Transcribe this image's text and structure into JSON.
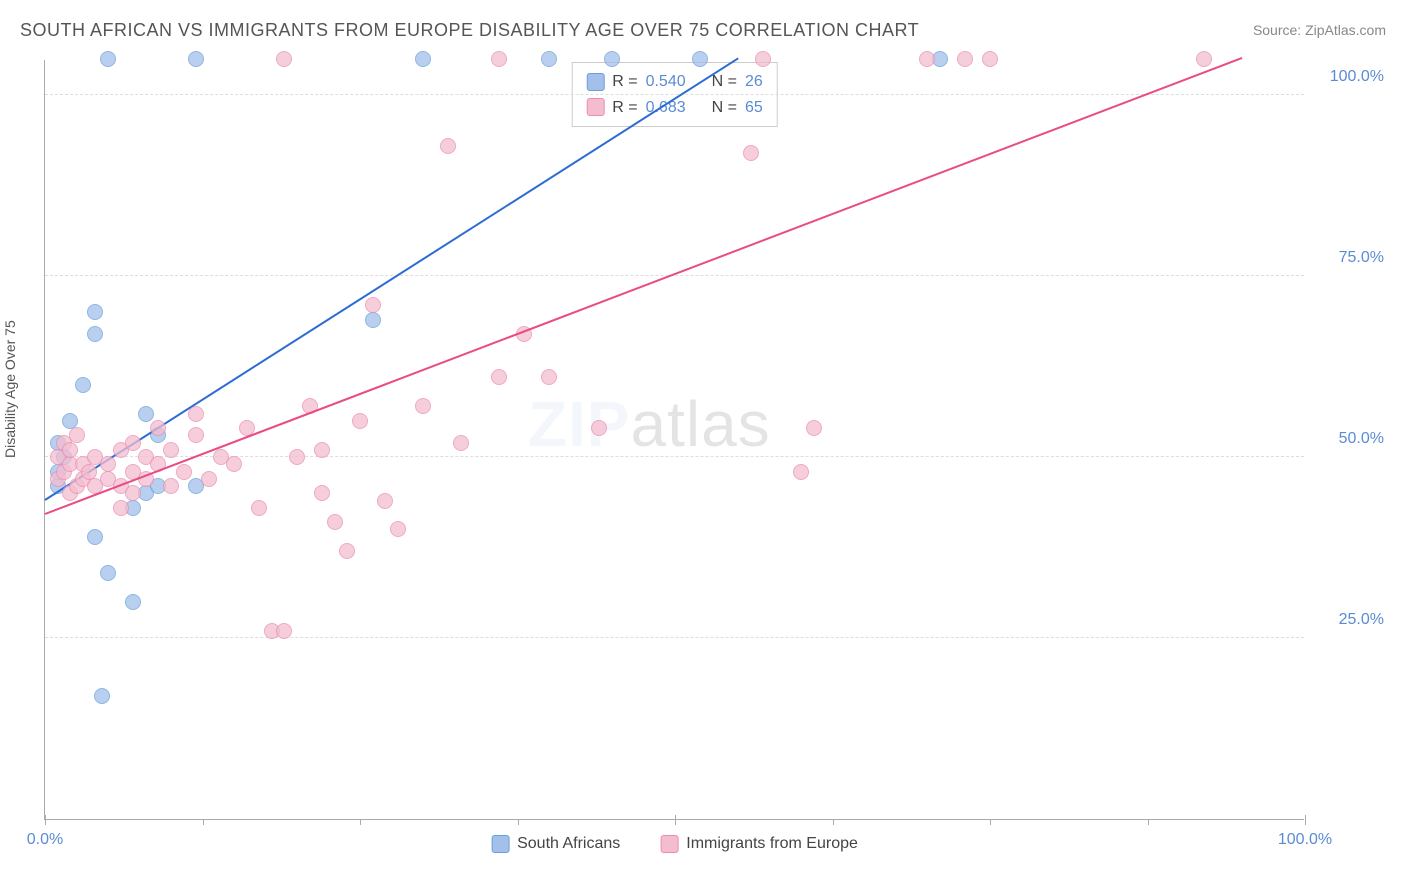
{
  "title": "SOUTH AFRICAN VS IMMIGRANTS FROM EUROPE DISABILITY AGE OVER 75 CORRELATION CHART",
  "source": "Source: ZipAtlas.com",
  "y_axis_label": "Disability Age Over 75",
  "watermark_bold": "ZIP",
  "watermark_rest": "atlas",
  "chart": {
    "type": "scatter",
    "xlim": [
      0,
      100
    ],
    "ylim": [
      0,
      105
    ],
    "yticks": [
      25,
      50,
      75,
      100
    ],
    "ytick_labels": [
      "25.0%",
      "50.0%",
      "75.0%",
      "100.0%"
    ],
    "xticks": [
      0,
      50,
      100
    ],
    "xtick_labels": [
      "0.0%",
      "",
      "100.0%"
    ],
    "xtick_minor": [
      12.5,
      25,
      37.5,
      62.5,
      75,
      87.5
    ],
    "grid_color": "#dddddd",
    "axis_color": "#aaaaaa",
    "point_radius": 8,
    "series": [
      {
        "name": "South Africans",
        "color_fill": "#a2c0ea",
        "color_stroke": "#6a9edc",
        "trend_color": "#2b6cd4",
        "trend": {
          "x1": 0,
          "y1": 44,
          "x2": 55,
          "y2": 105
        },
        "R_label": "R =",
        "R_value": "0.540",
        "N_label": "N =",
        "N_value": "26",
        "points": [
          {
            "x": 1,
            "y": 46
          },
          {
            "x": 1,
            "y": 48
          },
          {
            "x": 1,
            "y": 52
          },
          {
            "x": 1.5,
            "y": 50
          },
          {
            "x": 2,
            "y": 55
          },
          {
            "x": 3,
            "y": 60
          },
          {
            "x": 4,
            "y": 67
          },
          {
            "x": 4,
            "y": 70
          },
          {
            "x": 4,
            "y": 39
          },
          {
            "x": 4.5,
            "y": 17
          },
          {
            "x": 5,
            "y": 105
          },
          {
            "x": 5,
            "y": 34
          },
          {
            "x": 7,
            "y": 30
          },
          {
            "x": 7,
            "y": 43
          },
          {
            "x": 8,
            "y": 56
          },
          {
            "x": 8,
            "y": 45
          },
          {
            "x": 9,
            "y": 53
          },
          {
            "x": 9,
            "y": 46
          },
          {
            "x": 12,
            "y": 105
          },
          {
            "x": 12,
            "y": 46
          },
          {
            "x": 26,
            "y": 69
          },
          {
            "x": 30,
            "y": 105
          },
          {
            "x": 40,
            "y": 105
          },
          {
            "x": 45,
            "y": 105
          },
          {
            "x": 52,
            "y": 105
          },
          {
            "x": 71,
            "y": 105
          }
        ]
      },
      {
        "name": "Immigrants from Europe",
        "color_fill": "#f4bdcf",
        "color_stroke": "#eb8db0",
        "trend_color": "#e94b86",
        "trend": {
          "x1": 0,
          "y1": 42,
          "x2": 95,
          "y2": 105
        },
        "R_label": "R =",
        "R_value": "0.683",
        "N_label": "N =",
        "N_value": "65",
        "points": [
          {
            "x": 1,
            "y": 47
          },
          {
            "x": 1,
            "y": 50
          },
          {
            "x": 1.5,
            "y": 48
          },
          {
            "x": 1.5,
            "y": 52
          },
          {
            "x": 2,
            "y": 45
          },
          {
            "x": 2,
            "y": 49
          },
          {
            "x": 2,
            "y": 51
          },
          {
            "x": 2.5,
            "y": 46
          },
          {
            "x": 2.5,
            "y": 53
          },
          {
            "x": 3,
            "y": 47
          },
          {
            "x": 3,
            "y": 49
          },
          {
            "x": 3.5,
            "y": 48
          },
          {
            "x": 4,
            "y": 46
          },
          {
            "x": 4,
            "y": 50
          },
          {
            "x": 5,
            "y": 49
          },
          {
            "x": 5,
            "y": 47
          },
          {
            "x": 6,
            "y": 46
          },
          {
            "x": 6,
            "y": 51
          },
          {
            "x": 6,
            "y": 43
          },
          {
            "x": 7,
            "y": 48
          },
          {
            "x": 7,
            "y": 52
          },
          {
            "x": 7,
            "y": 45
          },
          {
            "x": 8,
            "y": 50
          },
          {
            "x": 8,
            "y": 47
          },
          {
            "x": 9,
            "y": 54
          },
          {
            "x": 9,
            "y": 49
          },
          {
            "x": 10,
            "y": 46
          },
          {
            "x": 10,
            "y": 51
          },
          {
            "x": 11,
            "y": 48
          },
          {
            "x": 12,
            "y": 53
          },
          {
            "x": 12,
            "y": 56
          },
          {
            "x": 13,
            "y": 47
          },
          {
            "x": 14,
            "y": 50
          },
          {
            "x": 15,
            "y": 49
          },
          {
            "x": 16,
            "y": 54
          },
          {
            "x": 17,
            "y": 43
          },
          {
            "x": 18,
            "y": 26
          },
          {
            "x": 19,
            "y": 26
          },
          {
            "x": 19,
            "y": 105
          },
          {
            "x": 20,
            "y": 50
          },
          {
            "x": 21,
            "y": 57
          },
          {
            "x": 22,
            "y": 51
          },
          {
            "x": 22,
            "y": 45
          },
          {
            "x": 23,
            "y": 41
          },
          {
            "x": 24,
            "y": 37
          },
          {
            "x": 25,
            "y": 55
          },
          {
            "x": 26,
            "y": 71
          },
          {
            "x": 27,
            "y": 44
          },
          {
            "x": 28,
            "y": 40
          },
          {
            "x": 30,
            "y": 57
          },
          {
            "x": 32,
            "y": 93
          },
          {
            "x": 33,
            "y": 52
          },
          {
            "x": 36,
            "y": 61
          },
          {
            "x": 36,
            "y": 105
          },
          {
            "x": 38,
            "y": 67
          },
          {
            "x": 40,
            "y": 61
          },
          {
            "x": 44,
            "y": 54
          },
          {
            "x": 56,
            "y": 92
          },
          {
            "x": 60,
            "y": 48
          },
          {
            "x": 61,
            "y": 54
          },
          {
            "x": 70,
            "y": 105
          },
          {
            "x": 73,
            "y": 105
          },
          {
            "x": 75,
            "y": 105
          },
          {
            "x": 92,
            "y": 105
          },
          {
            "x": 57,
            "y": 105
          }
        ]
      }
    ]
  },
  "bottom_legend": {
    "items": [
      {
        "label": "South Africans",
        "fill": "#a2c0ea",
        "stroke": "#6a9edc"
      },
      {
        "label": "Immigrants from Europe",
        "fill": "#f4bdcf",
        "stroke": "#eb8db0"
      }
    ]
  }
}
